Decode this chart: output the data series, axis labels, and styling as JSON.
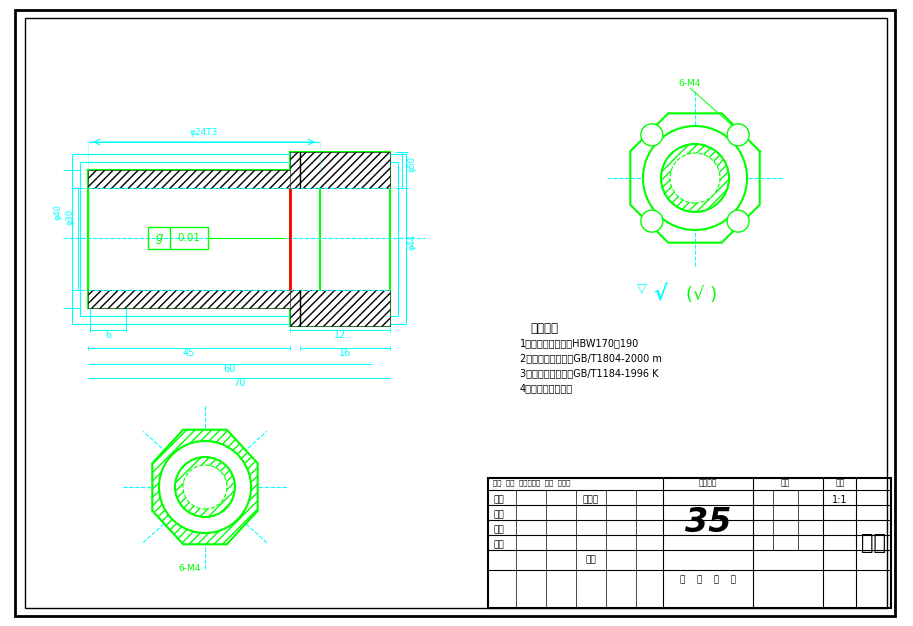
{
  "bg_color": "#ffffff",
  "green": "#00ff00",
  "cyan": "#00ffff",
  "black": "#000000",
  "red": "#ff0000",
  "part_name": "缸套",
  "scale": "1:1",
  "designer": "陈湘化",
  "tech_req_title": "技术要求",
  "tech_req": [
    "1、调质处理后硬度HBW170到190",
    "2、未注尺寸公差按GB/T1804-2000 m",
    "3、未注几何公差按GB/T1184-1996 K",
    "4、锐边倒棱去毛刺"
  ]
}
